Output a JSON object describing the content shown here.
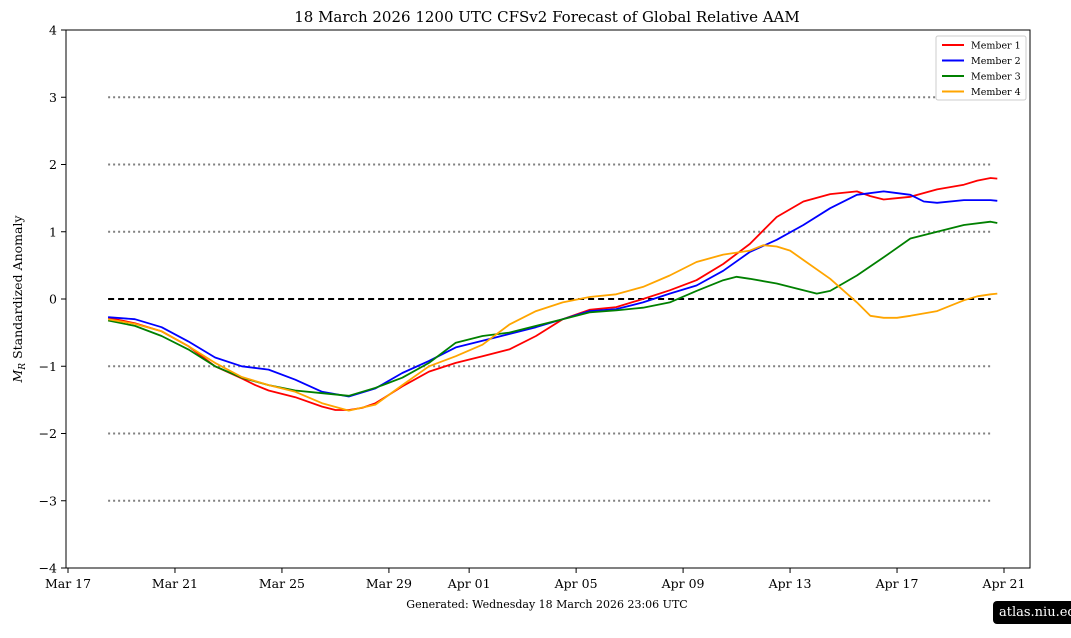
{
  "chart_data": {
    "type": "line",
    "title": "18  March  2026 1200 UTC   CFSv2 Forecast of Global Relative AAM",
    "ylabel_symbol": "M",
    "ylabel_subscript": "R",
    "ylabel_rest": " Standardized Anomaly",
    "xlabel": "",
    "ylim": [
      -4,
      4
    ],
    "y_ticks": [
      -4,
      -3,
      -2,
      -1,
      0,
      1,
      2,
      3,
      4
    ],
    "y_tick_labels": [
      "−4",
      "−3",
      "−2",
      "−1",
      "0",
      "1",
      "2",
      "3",
      "4"
    ],
    "x_range_days": [
      "2026-03-17",
      "2026-04-21"
    ],
    "x_ticks": [
      {
        "date": "2026-03-17",
        "label": "Mar 17"
      },
      {
        "date": "2026-03-21",
        "label": "Mar 21"
      },
      {
        "date": "2026-03-25",
        "label": "Mar 25"
      },
      {
        "date": "2026-03-29",
        "label": "Mar 29"
      },
      {
        "date": "2026-04-01",
        "label": "Apr 01"
      },
      {
        "date": "2026-04-05",
        "label": "Apr 05"
      },
      {
        "date": "2026-04-09",
        "label": "Apr 09"
      },
      {
        "date": "2026-04-13",
        "label": "Apr 13"
      },
      {
        "date": "2026-04-17",
        "label": "Apr 17"
      },
      {
        "date": "2026-04-21",
        "label": "Apr 21"
      }
    ],
    "reference_lines": [
      {
        "y": 3,
        "style": "dotted",
        "color": "#808080"
      },
      {
        "y": 2,
        "style": "dotted",
        "color": "#808080"
      },
      {
        "y": 1,
        "style": "dotted",
        "color": "#808080"
      },
      {
        "y": 0,
        "style": "dashed",
        "color": "#000000"
      },
      {
        "y": -1,
        "style": "dotted",
        "color": "#808080"
      },
      {
        "y": -2,
        "style": "dotted",
        "color": "#808080"
      },
      {
        "y": -3,
        "style": "dotted",
        "color": "#808080"
      }
    ],
    "reference_line_span": [
      "2026-03-18 12:00",
      "2026-04-20 12:00"
    ],
    "legend_placement": "top-right",
    "series": [
      {
        "name": "Member 1",
        "color": "#ff0000",
        "points": [
          [
            "2026-03-18 12:00",
            -0.28
          ],
          [
            "2026-03-19 12:00",
            -0.36
          ],
          [
            "2026-03-20 12:00",
            -0.48
          ],
          [
            "2026-03-21 12:00",
            -0.7
          ],
          [
            "2026-03-22 12:00",
            -1.0
          ],
          [
            "2026-03-23 12:00",
            -1.18
          ],
          [
            "2026-03-24 00:00",
            -1.28
          ],
          [
            "2026-03-24 12:00",
            -1.36
          ],
          [
            "2026-03-25 12:00",
            -1.46
          ],
          [
            "2026-03-26 12:00",
            -1.6
          ],
          [
            "2026-03-27 00:00",
            -1.65
          ],
          [
            "2026-03-27 12:00",
            -1.65
          ],
          [
            "2026-03-28 00:00",
            -1.62
          ],
          [
            "2026-03-28 12:00",
            -1.55
          ],
          [
            "2026-03-29 12:00",
            -1.3
          ],
          [
            "2026-03-30 12:00",
            -1.08
          ],
          [
            "2026-03-31 12:00",
            -0.95
          ],
          [
            "2026-04-01 12:00",
            -0.85
          ],
          [
            "2026-04-02 12:00",
            -0.75
          ],
          [
            "2026-04-03 12:00",
            -0.55
          ],
          [
            "2026-04-04 12:00",
            -0.3
          ],
          [
            "2026-04-05 12:00",
            -0.16
          ],
          [
            "2026-04-06 12:00",
            -0.12
          ],
          [
            "2026-04-07 12:00",
            0.0
          ],
          [
            "2026-04-08 12:00",
            0.13
          ],
          [
            "2026-04-09 12:00",
            0.28
          ],
          [
            "2026-04-10 12:00",
            0.52
          ],
          [
            "2026-04-11 12:00",
            0.82
          ],
          [
            "2026-04-12 00:00",
            1.02
          ],
          [
            "2026-04-12 12:00",
            1.22
          ],
          [
            "2026-04-13 12:00",
            1.45
          ],
          [
            "2026-04-14 12:00",
            1.56
          ],
          [
            "2026-04-15 12:00",
            1.6
          ],
          [
            "2026-04-16 00:00",
            1.53
          ],
          [
            "2026-04-16 12:00",
            1.48
          ],
          [
            "2026-04-17 12:00",
            1.52
          ],
          [
            "2026-04-18 12:00",
            1.63
          ],
          [
            "2026-04-19 12:00",
            1.7
          ],
          [
            "2026-04-20 00:00",
            1.76
          ],
          [
            "2026-04-20 12:00",
            1.8
          ],
          [
            "2026-04-20 18:00",
            1.79
          ]
        ]
      },
      {
        "name": "Member 2",
        "color": "#0000ff",
        "points": [
          [
            "2026-03-18 12:00",
            -0.27
          ],
          [
            "2026-03-19 12:00",
            -0.3
          ],
          [
            "2026-03-20 12:00",
            -0.42
          ],
          [
            "2026-03-21 12:00",
            -0.63
          ],
          [
            "2026-03-22 12:00",
            -0.87
          ],
          [
            "2026-03-23 12:00",
            -1.0
          ],
          [
            "2026-03-24 12:00",
            -1.05
          ],
          [
            "2026-03-25 12:00",
            -1.2
          ],
          [
            "2026-03-26 12:00",
            -1.38
          ],
          [
            "2026-03-27 12:00",
            -1.45
          ],
          [
            "2026-03-28 12:00",
            -1.33
          ],
          [
            "2026-03-29 12:00",
            -1.1
          ],
          [
            "2026-03-30 12:00",
            -0.92
          ],
          [
            "2026-03-31 12:00",
            -0.72
          ],
          [
            "2026-04-01 12:00",
            -0.62
          ],
          [
            "2026-04-02 12:00",
            -0.52
          ],
          [
            "2026-04-03 12:00",
            -0.42
          ],
          [
            "2026-04-04 12:00",
            -0.3
          ],
          [
            "2026-04-05 12:00",
            -0.18
          ],
          [
            "2026-04-06 12:00",
            -0.15
          ],
          [
            "2026-04-07 12:00",
            -0.05
          ],
          [
            "2026-04-08 12:00",
            0.08
          ],
          [
            "2026-04-09 12:00",
            0.2
          ],
          [
            "2026-04-10 12:00",
            0.42
          ],
          [
            "2026-04-11 12:00",
            0.7
          ],
          [
            "2026-04-12 12:00",
            0.88
          ],
          [
            "2026-04-13 12:00",
            1.1
          ],
          [
            "2026-04-14 12:00",
            1.35
          ],
          [
            "2026-04-15 12:00",
            1.55
          ],
          [
            "2026-04-16 12:00",
            1.6
          ],
          [
            "2026-04-17 12:00",
            1.55
          ],
          [
            "2026-04-18 00:00",
            1.45
          ],
          [
            "2026-04-18 12:00",
            1.43
          ],
          [
            "2026-04-19 12:00",
            1.47
          ],
          [
            "2026-04-20 12:00",
            1.47
          ],
          [
            "2026-04-20 18:00",
            1.46
          ]
        ]
      },
      {
        "name": "Member 3",
        "color": "#008000",
        "points": [
          [
            "2026-03-18 12:00",
            -0.32
          ],
          [
            "2026-03-19 12:00",
            -0.4
          ],
          [
            "2026-03-20 12:00",
            -0.55
          ],
          [
            "2026-03-21 12:00",
            -0.75
          ],
          [
            "2026-03-22 12:00",
            -1.0
          ],
          [
            "2026-03-23 12:00",
            -1.17
          ],
          [
            "2026-03-24 12:00",
            -1.28
          ],
          [
            "2026-03-25 12:00",
            -1.36
          ],
          [
            "2026-03-26 12:00",
            -1.4
          ],
          [
            "2026-03-27 12:00",
            -1.44
          ],
          [
            "2026-03-28 12:00",
            -1.32
          ],
          [
            "2026-03-29 12:00",
            -1.17
          ],
          [
            "2026-03-30 12:00",
            -0.95
          ],
          [
            "2026-03-31 12:00",
            -0.65
          ],
          [
            "2026-04-01 12:00",
            -0.55
          ],
          [
            "2026-04-02 12:00",
            -0.5
          ],
          [
            "2026-04-03 12:00",
            -0.4
          ],
          [
            "2026-04-04 12:00",
            -0.3
          ],
          [
            "2026-04-05 12:00",
            -0.2
          ],
          [
            "2026-04-06 12:00",
            -0.17
          ],
          [
            "2026-04-07 12:00",
            -0.13
          ],
          [
            "2026-04-08 12:00",
            -0.05
          ],
          [
            "2026-04-09 12:00",
            0.12
          ],
          [
            "2026-04-10 12:00",
            0.28
          ],
          [
            "2026-04-11 00:00",
            0.33
          ],
          [
            "2026-04-11 12:00",
            0.3
          ],
          [
            "2026-04-12 12:00",
            0.23
          ],
          [
            "2026-04-13 12:00",
            0.13
          ],
          [
            "2026-04-14 00:00",
            0.08
          ],
          [
            "2026-04-14 12:00",
            0.12
          ],
          [
            "2026-04-15 12:00",
            0.35
          ],
          [
            "2026-04-16 12:00",
            0.62
          ],
          [
            "2026-04-17 12:00",
            0.9
          ],
          [
            "2026-04-18 12:00",
            1.0
          ],
          [
            "2026-04-19 12:00",
            1.1
          ],
          [
            "2026-04-20 12:00",
            1.15
          ],
          [
            "2026-04-20 18:00",
            1.13
          ]
        ]
      },
      {
        "name": "Member 4",
        "color": "#ffa500",
        "points": [
          [
            "2026-03-18 12:00",
            -0.3
          ],
          [
            "2026-03-19 12:00",
            -0.37
          ],
          [
            "2026-03-20 12:00",
            -0.48
          ],
          [
            "2026-03-21 12:00",
            -0.7
          ],
          [
            "2026-03-22 12:00",
            -0.95
          ],
          [
            "2026-03-23 12:00",
            -1.16
          ],
          [
            "2026-03-24 12:00",
            -1.28
          ],
          [
            "2026-03-25 12:00",
            -1.38
          ],
          [
            "2026-03-26 12:00",
            -1.55
          ],
          [
            "2026-03-27 12:00",
            -1.66
          ],
          [
            "2026-03-28 12:00",
            -1.57
          ],
          [
            "2026-03-29 12:00",
            -1.28
          ],
          [
            "2026-03-30 12:00",
            -1.0
          ],
          [
            "2026-03-31 12:00",
            -0.85
          ],
          [
            "2026-04-01 12:00",
            -0.68
          ],
          [
            "2026-04-02 12:00",
            -0.38
          ],
          [
            "2026-04-03 12:00",
            -0.18
          ],
          [
            "2026-04-04 12:00",
            -0.05
          ],
          [
            "2026-04-05 12:00",
            0.03
          ],
          [
            "2026-04-06 12:00",
            0.07
          ],
          [
            "2026-04-07 12:00",
            0.18
          ],
          [
            "2026-04-08 12:00",
            0.35
          ],
          [
            "2026-04-09 12:00",
            0.55
          ],
          [
            "2026-04-10 12:00",
            0.66
          ],
          [
            "2026-04-11 12:00",
            0.72
          ],
          [
            "2026-04-12 00:00",
            0.8
          ],
          [
            "2026-04-12 12:00",
            0.78
          ],
          [
            "2026-04-13 00:00",
            0.72
          ],
          [
            "2026-04-13 12:00",
            0.58
          ],
          [
            "2026-04-14 12:00",
            0.3
          ],
          [
            "2026-04-15 12:00",
            -0.05
          ],
          [
            "2026-04-16 00:00",
            -0.25
          ],
          [
            "2026-04-16 12:00",
            -0.28
          ],
          [
            "2026-04-17 00:00",
            -0.28
          ],
          [
            "2026-04-17 12:00",
            -0.25
          ],
          [
            "2026-04-18 12:00",
            -0.18
          ],
          [
            "2026-04-19 12:00",
            -0.02
          ],
          [
            "2026-04-20 00:00",
            0.04
          ],
          [
            "2026-04-20 12:00",
            0.07
          ],
          [
            "2026-04-20 18:00",
            0.08
          ]
        ]
      }
    ]
  },
  "footer_text": "Generated: Wednesday  18  March  2026  23:06 UTC",
  "badge_text": "atlas.niu.edu"
}
